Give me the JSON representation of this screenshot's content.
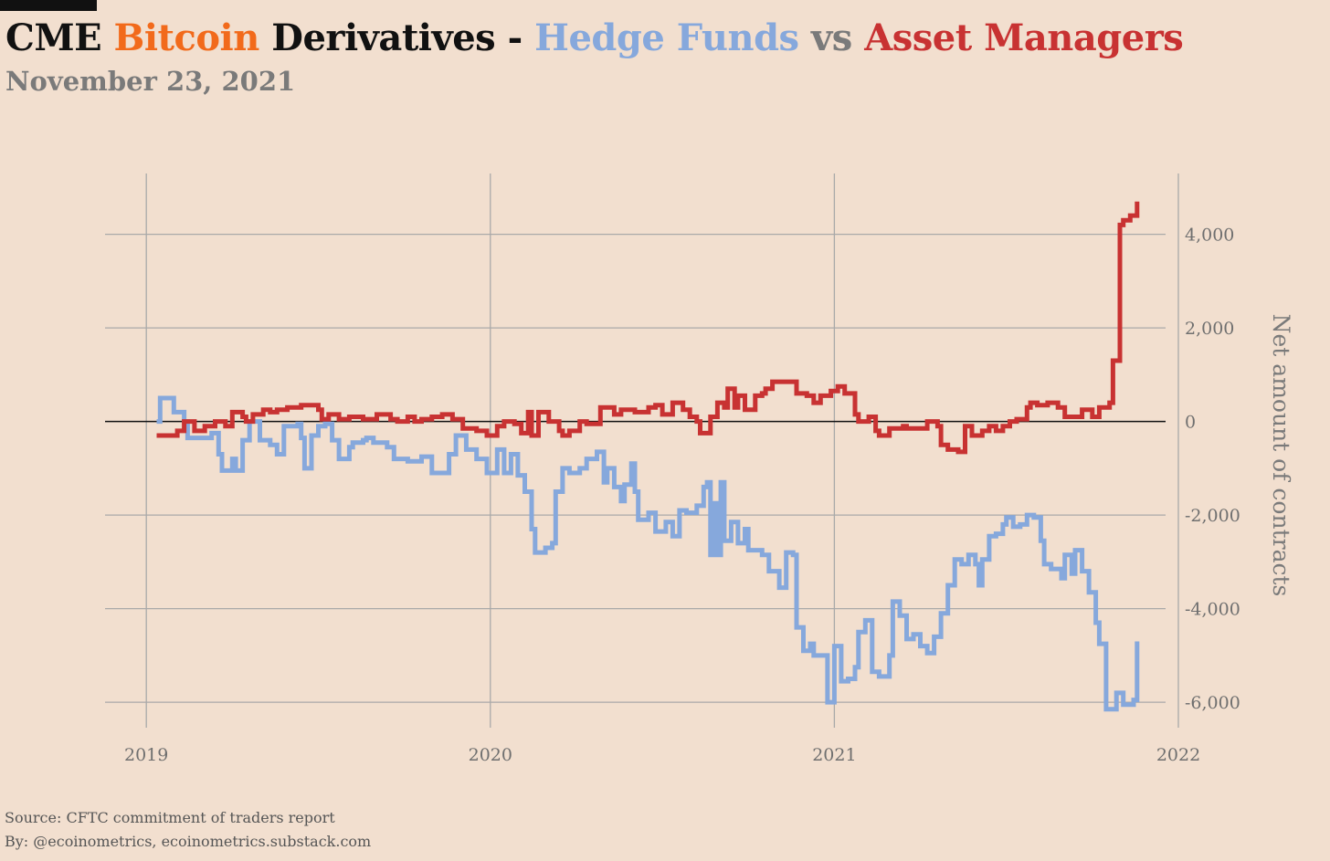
{
  "header": {
    "title_parts": [
      {
        "text": "CME ",
        "color": "#111111"
      },
      {
        "text": "Bitcoin",
        "color": "#f26a1b"
      },
      {
        "text": " Derivatives - ",
        "color": "#111111"
      },
      {
        "text": "Hedge Funds",
        "color": "#86a8dc"
      },
      {
        "text": " vs ",
        "color": "#7a7a7a"
      },
      {
        "text": "Asset Managers",
        "color": "#c83232"
      }
    ],
    "subtitle": "November 23, 2021"
  },
  "footer": {
    "source": "Source: CFTC commitment of traders report",
    "by": "By: @ecoinometrics, ecoinometrics.substack.com"
  },
  "colors": {
    "background": "#f2dfcf",
    "grid": "#a9a9a9",
    "zero_line": "#111111",
    "hedge_funds": "#86a8dc",
    "asset_managers": "#c83232"
  },
  "chart_data": {
    "type": "line",
    "step": true,
    "title": "",
    "xlabel": "",
    "ylabel": "Net amount of contracts",
    "y_axis_side": "right",
    "grid": true,
    "zero_line": true,
    "xlim": [
      2018.88,
      2022.0
    ],
    "ylim": [
      -6700,
      5300
    ],
    "x_ticks": [
      {
        "value": 2019,
        "label": "2019"
      },
      {
        "value": 2020,
        "label": "2020"
      },
      {
        "value": 2021,
        "label": "2021"
      },
      {
        "value": 2022,
        "label": "2022"
      }
    ],
    "y_ticks": [
      {
        "value": 4000,
        "label": "4,000"
      },
      {
        "value": 2000,
        "label": "2,000"
      },
      {
        "value": 0,
        "label": "0"
      },
      {
        "value": -2000,
        "label": "-2,000"
      },
      {
        "value": -4000,
        "label": "-4,000"
      },
      {
        "value": -6000,
        "label": "-6,000"
      }
    ],
    "series": [
      {
        "name": "Hedge Funds",
        "color": "#86a8dc",
        "points": [
          [
            2019.03,
            0
          ],
          [
            2019.04,
            500
          ],
          [
            2019.08,
            200
          ],
          [
            2019.11,
            0
          ],
          [
            2019.12,
            -350
          ],
          [
            2019.16,
            -350
          ],
          [
            2019.19,
            -250
          ],
          [
            2019.21,
            -700
          ],
          [
            2019.22,
            -1050
          ],
          [
            2019.25,
            -800
          ],
          [
            2019.26,
            -1050
          ],
          [
            2019.28,
            -400
          ],
          [
            2019.3,
            0
          ],
          [
            2019.33,
            -400
          ],
          [
            2019.36,
            -500
          ],
          [
            2019.38,
            -700
          ],
          [
            2019.4,
            -100
          ],
          [
            2019.44,
            -50
          ],
          [
            2019.45,
            -350
          ],
          [
            2019.46,
            -1000
          ],
          [
            2019.48,
            -300
          ],
          [
            2019.5,
            -100
          ],
          [
            2019.52,
            -50
          ],
          [
            2019.54,
            -400
          ],
          [
            2019.56,
            -800
          ],
          [
            2019.59,
            -550
          ],
          [
            2019.6,
            -450
          ],
          [
            2019.63,
            -400
          ],
          [
            2019.64,
            -350
          ],
          [
            2019.66,
            -450
          ],
          [
            2019.7,
            -550
          ],
          [
            2019.72,
            -800
          ],
          [
            2019.76,
            -850
          ],
          [
            2019.8,
            -750
          ],
          [
            2019.83,
            -1100
          ],
          [
            2019.88,
            -700
          ],
          [
            2019.9,
            -300
          ],
          [
            2019.93,
            -600
          ],
          [
            2019.96,
            -800
          ],
          [
            2019.99,
            -1100
          ],
          [
            2020.02,
            -600
          ],
          [
            2020.04,
            -1100
          ],
          [
            2020.06,
            -700
          ],
          [
            2020.08,
            -1150
          ],
          [
            2020.1,
            -1500
          ],
          [
            2020.12,
            -2300
          ],
          [
            2020.13,
            -2800
          ],
          [
            2020.16,
            -2700
          ],
          [
            2020.18,
            -2600
          ],
          [
            2020.19,
            -1500
          ],
          [
            2020.21,
            -1000
          ],
          [
            2020.23,
            -1100
          ],
          [
            2020.26,
            -1000
          ],
          [
            2020.28,
            -800
          ],
          [
            2020.31,
            -650
          ],
          [
            2020.33,
            -1300
          ],
          [
            2020.34,
            -1000
          ],
          [
            2020.36,
            -1400
          ],
          [
            2020.38,
            -1700
          ],
          [
            2020.39,
            -1350
          ],
          [
            2020.41,
            -900
          ],
          [
            2020.42,
            -1500
          ],
          [
            2020.43,
            -2100
          ],
          [
            2020.46,
            -1950
          ],
          [
            2020.48,
            -2350
          ],
          [
            2020.51,
            -2150
          ],
          [
            2020.53,
            -2450
          ],
          [
            2020.55,
            -1900
          ],
          [
            2020.57,
            -1950
          ],
          [
            2020.6,
            -1800
          ],
          [
            2020.62,
            -1400
          ],
          [
            2020.63,
            -1300
          ],
          [
            2020.64,
            -2850
          ],
          [
            2020.65,
            -1750
          ],
          [
            2020.66,
            -2850
          ],
          [
            2020.67,
            -1300
          ],
          [
            2020.68,
            -2550
          ],
          [
            2020.7,
            -2150
          ],
          [
            2020.72,
            -2600
          ],
          [
            2020.74,
            -2300
          ],
          [
            2020.75,
            -2750
          ],
          [
            2020.79,
            -2850
          ],
          [
            2020.81,
            -3200
          ],
          [
            2020.84,
            -3550
          ],
          [
            2020.86,
            -2800
          ],
          [
            2020.88,
            -2850
          ],
          [
            2020.89,
            -4400
          ],
          [
            2020.91,
            -4900
          ],
          [
            2020.93,
            -4750
          ],
          [
            2020.94,
            -5000
          ],
          [
            2020.97,
            -5000
          ],
          [
            2020.98,
            -6000
          ],
          [
            2021.0,
            -4800
          ],
          [
            2021.02,
            -5550
          ],
          [
            2021.04,
            -5500
          ],
          [
            2021.06,
            -5250
          ],
          [
            2021.07,
            -4500
          ],
          [
            2021.09,
            -4250
          ],
          [
            2021.11,
            -5350
          ],
          [
            2021.13,
            -5450
          ],
          [
            2021.16,
            -5000
          ],
          [
            2021.17,
            -3850
          ],
          [
            2021.19,
            -4150
          ],
          [
            2021.21,
            -4650
          ],
          [
            2021.23,
            -4550
          ],
          [
            2021.25,
            -4800
          ],
          [
            2021.27,
            -4950
          ],
          [
            2021.29,
            -4600
          ],
          [
            2021.31,
            -4100
          ],
          [
            2021.33,
            -3500
          ],
          [
            2021.34,
            -3500
          ],
          [
            2021.35,
            -2950
          ],
          [
            2021.37,
            -3050
          ],
          [
            2021.39,
            -2850
          ],
          [
            2021.41,
            -3050
          ],
          [
            2021.42,
            -3500
          ],
          [
            2021.43,
            -2950
          ],
          [
            2021.45,
            -2450
          ],
          [
            2021.47,
            -2400
          ],
          [
            2021.49,
            -2200
          ],
          [
            2021.5,
            -2050
          ],
          [
            2021.52,
            -2250
          ],
          [
            2021.54,
            -2200
          ],
          [
            2021.56,
            -2000
          ],
          [
            2021.58,
            -2050
          ],
          [
            2021.6,
            -2550
          ],
          [
            2021.61,
            -3050
          ],
          [
            2021.63,
            -3150
          ],
          [
            2021.66,
            -3350
          ],
          [
            2021.67,
            -2850
          ],
          [
            2021.69,
            -3250
          ],
          [
            2021.7,
            -2750
          ],
          [
            2021.72,
            -3200
          ],
          [
            2021.74,
            -3650
          ],
          [
            2021.76,
            -4300
          ],
          [
            2021.77,
            -4750
          ],
          [
            2021.79,
            -6150
          ],
          [
            2021.82,
            -5800
          ],
          [
            2021.84,
            -6050
          ],
          [
            2021.87,
            -5950
          ],
          [
            2021.88,
            -4700
          ]
        ]
      },
      {
        "name": "Asset Managers",
        "color": "#c83232",
        "points": [
          [
            2019.03,
            -300
          ],
          [
            2019.09,
            -200
          ],
          [
            2019.11,
            0
          ],
          [
            2019.14,
            -200
          ],
          [
            2019.17,
            -100
          ],
          [
            2019.2,
            0
          ],
          [
            2019.23,
            -100
          ],
          [
            2019.25,
            200
          ],
          [
            2019.28,
            100
          ],
          [
            2019.29,
            0
          ],
          [
            2019.31,
            150
          ],
          [
            2019.34,
            250
          ],
          [
            2019.36,
            200
          ],
          [
            2019.38,
            250
          ],
          [
            2019.41,
            300
          ],
          [
            2019.45,
            350
          ],
          [
            2019.5,
            250
          ],
          [
            2019.51,
            50
          ],
          [
            2019.53,
            150
          ],
          [
            2019.56,
            50
          ],
          [
            2019.59,
            100
          ],
          [
            2019.63,
            50
          ],
          [
            2019.67,
            150
          ],
          [
            2019.71,
            50
          ],
          [
            2019.73,
            0
          ],
          [
            2019.76,
            100
          ],
          [
            2019.78,
            0
          ],
          [
            2019.8,
            50
          ],
          [
            2019.83,
            100
          ],
          [
            2019.86,
            150
          ],
          [
            2019.89,
            50
          ],
          [
            2019.92,
            -150
          ],
          [
            2019.96,
            -200
          ],
          [
            2019.99,
            -300
          ],
          [
            2020.02,
            -100
          ],
          [
            2020.04,
            0
          ],
          [
            2020.07,
            -50
          ],
          [
            2020.09,
            -250
          ],
          [
            2020.11,
            200
          ],
          [
            2020.12,
            -300
          ],
          [
            2020.14,
            200
          ],
          [
            2020.17,
            0
          ],
          [
            2020.2,
            -200
          ],
          [
            2020.21,
            -300
          ],
          [
            2020.23,
            -200
          ],
          [
            2020.26,
            0
          ],
          [
            2020.28,
            -50
          ],
          [
            2020.32,
            300
          ],
          [
            2020.36,
            150
          ],
          [
            2020.38,
            250
          ],
          [
            2020.42,
            200
          ],
          [
            2020.46,
            300
          ],
          [
            2020.48,
            350
          ],
          [
            2020.5,
            150
          ],
          [
            2020.53,
            400
          ],
          [
            2020.56,
            250
          ],
          [
            2020.58,
            100
          ],
          [
            2020.6,
            0
          ],
          [
            2020.61,
            -250
          ],
          [
            2020.64,
            100
          ],
          [
            2020.66,
            400
          ],
          [
            2020.68,
            300
          ],
          [
            2020.69,
            700
          ],
          [
            2020.71,
            300
          ],
          [
            2020.72,
            550
          ],
          [
            2020.74,
            250
          ],
          [
            2020.77,
            550
          ],
          [
            2020.79,
            600
          ],
          [
            2020.8,
            700
          ],
          [
            2020.82,
            850
          ],
          [
            2020.87,
            850
          ],
          [
            2020.89,
            600
          ],
          [
            2020.92,
            550
          ],
          [
            2020.94,
            400
          ],
          [
            2020.96,
            550
          ],
          [
            2020.99,
            650
          ],
          [
            2021.01,
            750
          ],
          [
            2021.03,
            600
          ],
          [
            2021.06,
            150
          ],
          [
            2021.07,
            0
          ],
          [
            2021.1,
            100
          ],
          [
            2021.12,
            -200
          ],
          [
            2021.13,
            -300
          ],
          [
            2021.16,
            -150
          ],
          [
            2021.2,
            -100
          ],
          [
            2021.21,
            -150
          ],
          [
            2021.27,
            0
          ],
          [
            2021.3,
            -100
          ],
          [
            2021.31,
            -500
          ],
          [
            2021.33,
            -600
          ],
          [
            2021.36,
            -650
          ],
          [
            2021.38,
            -100
          ],
          [
            2021.4,
            -300
          ],
          [
            2021.43,
            -200
          ],
          [
            2021.45,
            -100
          ],
          [
            2021.47,
            -200
          ],
          [
            2021.49,
            -100
          ],
          [
            2021.51,
            0
          ],
          [
            2021.53,
            50
          ],
          [
            2021.56,
            300
          ],
          [
            2021.57,
            400
          ],
          [
            2021.59,
            350
          ],
          [
            2021.62,
            400
          ],
          [
            2021.65,
            300
          ],
          [
            2021.67,
            100
          ],
          [
            2021.71,
            100
          ],
          [
            2021.72,
            250
          ],
          [
            2021.75,
            100
          ],
          [
            2021.77,
            300
          ],
          [
            2021.8,
            400
          ],
          [
            2021.81,
            1300
          ],
          [
            2021.83,
            4200
          ],
          [
            2021.84,
            4300
          ],
          [
            2021.86,
            4400
          ],
          [
            2021.88,
            4700
          ]
        ]
      }
    ]
  }
}
